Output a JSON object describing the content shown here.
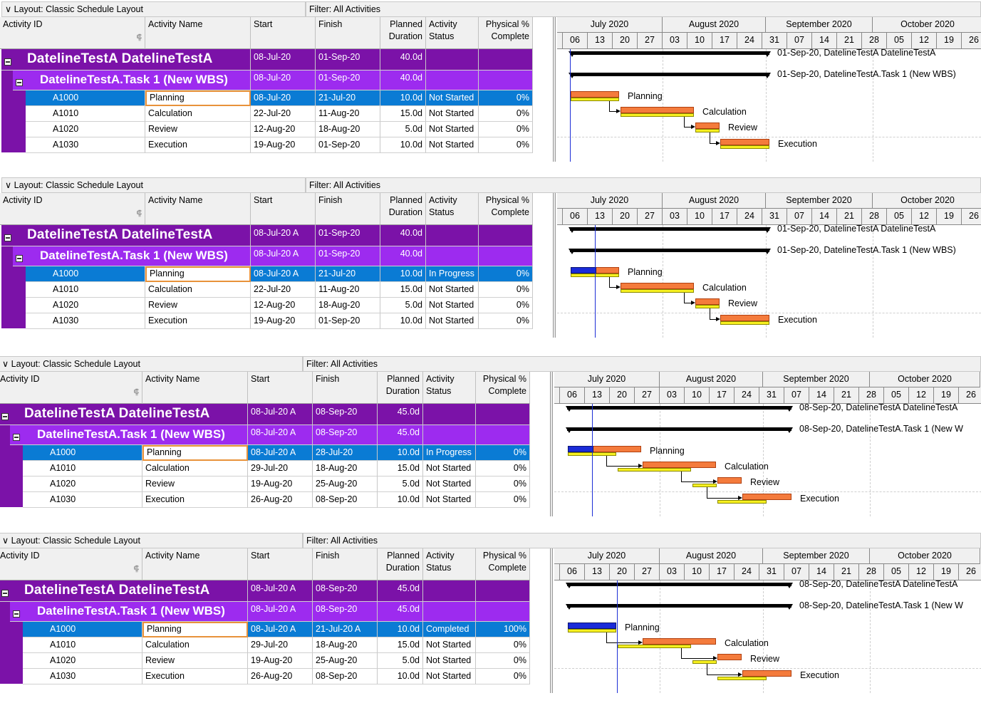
{
  "columns": {
    "activity_id": "Activity ID",
    "activity_name": "Activity Name",
    "start": "Start",
    "finish": "Finish",
    "planned_duration_1": "Planned",
    "planned_duration_2": "Duration",
    "activity_status_1": "Activity",
    "activity_status_2": "Status",
    "physical_1": "Physical %",
    "physical_2": "Complete"
  },
  "months": [
    "July 2020",
    "August 2020",
    "September 2020",
    "October 2020"
  ],
  "weeks": [
    "06",
    "13",
    "20",
    "27",
    "03",
    "10",
    "17",
    "24",
    "31",
    "07",
    "14",
    "21",
    "28",
    "05",
    "12",
    "19",
    "26"
  ],
  "panels": [
    {
      "layout_label": "Layout: Classic Schedule Layout",
      "filter_label": "Filter: All Activities",
      "wbs1": {
        "name": "DatelineTestA  DatelineTestA",
        "start": "08-Jul-20",
        "finish": "01-Sep-20",
        "duration": "40.0d",
        "label": "01-Sep-20, DatelineTestA  DatelineTestA"
      },
      "wbs2": {
        "name": "DatelineTestA.Task 1  (New WBS)",
        "start": "08-Jul-20",
        "finish": "01-Sep-20",
        "duration": "40.0d",
        "label": "01-Sep-20, DatelineTestA.Task 1  (New WBS)"
      },
      "activities": [
        {
          "id": "A1000",
          "name": "Planning",
          "start": "08-Jul-20",
          "finish": "21-Jul-20",
          "duration": "10.0d",
          "status": "Not Started",
          "pct": "0%"
        },
        {
          "id": "A1010",
          "name": "Calculation",
          "start": "22-Jul-20",
          "finish": "11-Aug-20",
          "duration": "15.0d",
          "status": "Not Started",
          "pct": "0%"
        },
        {
          "id": "A1020",
          "name": "Review",
          "start": "12-Aug-20",
          "finish": "18-Aug-20",
          "duration": "5.0d",
          "status": "Not Started",
          "pct": "0%"
        },
        {
          "id": "A1030",
          "name": "Execution",
          "start": "19-Aug-20",
          "finish": "01-Sep-20",
          "duration": "10.0d",
          "status": "Not Started",
          "pct": "0%"
        }
      ]
    },
    {
      "layout_label": "Layout: Classic Schedule Layout",
      "filter_label": "Filter: All Activities",
      "wbs1": {
        "name": "DatelineTestA  DatelineTestA",
        "start": "08-Jul-20 A",
        "finish": "01-Sep-20",
        "duration": "40.0d",
        "label": "01-Sep-20, DatelineTestA  DatelineTestA"
      },
      "wbs2": {
        "name": "DatelineTestA.Task 1  (New WBS)",
        "start": "08-Jul-20 A",
        "finish": "01-Sep-20",
        "duration": "40.0d",
        "label": "01-Sep-20, DatelineTestA.Task 1  (New WBS)"
      },
      "activities": [
        {
          "id": "A1000",
          "name": "Planning",
          "start": "08-Jul-20 A",
          "finish": "21-Jul-20",
          "duration": "10.0d",
          "status": "In Progress",
          "pct": "0%"
        },
        {
          "id": "A1010",
          "name": "Calculation",
          "start": "22-Jul-20",
          "finish": "11-Aug-20",
          "duration": "15.0d",
          "status": "Not Started",
          "pct": "0%"
        },
        {
          "id": "A1020",
          "name": "Review",
          "start": "12-Aug-20",
          "finish": "18-Aug-20",
          "duration": "5.0d",
          "status": "Not Started",
          "pct": "0%"
        },
        {
          "id": "A1030",
          "name": "Execution",
          "start": "19-Aug-20",
          "finish": "01-Sep-20",
          "duration": "10.0d",
          "status": "Not Started",
          "pct": "0%"
        }
      ]
    },
    {
      "layout_label": "Layout: Classic Schedule Layout",
      "filter_label": "Filter: All Activities",
      "wbs1": {
        "name": "DatelineTestA  DatelineTestA",
        "start": "08-Jul-20 A",
        "finish": "08-Sep-20",
        "duration": "45.0d",
        "label": "08-Sep-20, DatelineTestA  DatelineTestA"
      },
      "wbs2": {
        "name": "DatelineTestA.Task 1  (New WBS)",
        "start": "08-Jul-20 A",
        "finish": "08-Sep-20",
        "duration": "45.0d",
        "label": "08-Sep-20, DatelineTestA.Task 1  (New W"
      },
      "activities": [
        {
          "id": "A1000",
          "name": "Planning",
          "start": "08-Jul-20 A",
          "finish": "28-Jul-20",
          "duration": "10.0d",
          "status": "In Progress",
          "pct": "0%"
        },
        {
          "id": "A1010",
          "name": "Calculation",
          "start": "29-Jul-20",
          "finish": "18-Aug-20",
          "duration": "15.0d",
          "status": "Not Started",
          "pct": "0%"
        },
        {
          "id": "A1020",
          "name": "Review",
          "start": "19-Aug-20",
          "finish": "25-Aug-20",
          "duration": "5.0d",
          "status": "Not Started",
          "pct": "0%"
        },
        {
          "id": "A1030",
          "name": "Execution",
          "start": "26-Aug-20",
          "finish": "08-Sep-20",
          "duration": "10.0d",
          "status": "Not Started",
          "pct": "0%"
        }
      ]
    },
    {
      "layout_label": "Layout: Classic Schedule Layout",
      "filter_label": "Filter: All Activities",
      "wbs1": {
        "name": "DatelineTestA  DatelineTestA",
        "start": "08-Jul-20 A",
        "finish": "08-Sep-20",
        "duration": "45.0d",
        "label": "08-Sep-20, DatelineTestA  DatelineTestA"
      },
      "wbs2": {
        "name": "DatelineTestA.Task 1  (New WBS)",
        "start": "08-Jul-20 A",
        "finish": "08-Sep-20",
        "duration": "45.0d",
        "label": "08-Sep-20, DatelineTestA.Task 1  (New W"
      },
      "activities": [
        {
          "id": "A1000",
          "name": "Planning",
          "start": "08-Jul-20 A",
          "finish": "21-Jul-20 A",
          "duration": "10.0d",
          "status": "Completed",
          "pct": "100%"
        },
        {
          "id": "A1010",
          "name": "Calculation",
          "start": "29-Jul-20",
          "finish": "18-Aug-20",
          "duration": "15.0d",
          "status": "Not Started",
          "pct": "0%"
        },
        {
          "id": "A1020",
          "name": "Review",
          "start": "19-Aug-20",
          "finish": "25-Aug-20",
          "duration": "5.0d",
          "status": "Not Started",
          "pct": "0%"
        },
        {
          "id": "A1030",
          "name": "Execution",
          "start": "26-Aug-20",
          "finish": "08-Sep-20",
          "duration": "10.0d",
          "status": "Not Started",
          "pct": "0%"
        }
      ]
    }
  ]
}
